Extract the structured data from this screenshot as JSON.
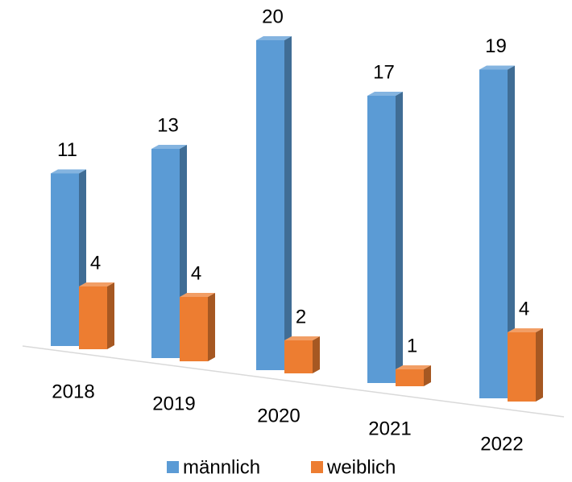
{
  "chart_data": {
    "type": "bar3d",
    "categories": [
      "2018",
      "2019",
      "2020",
      "2021",
      "2022"
    ],
    "series": [
      {
        "name": "männlich",
        "color": "#5b9bd5",
        "values": [
          11,
          13,
          20,
          17,
          19
        ]
      },
      {
        "name": "weiblich",
        "color": "#ed7d31",
        "values": [
          4,
          4,
          2,
          1,
          4
        ]
      }
    ],
    "legend": "bottom"
  }
}
